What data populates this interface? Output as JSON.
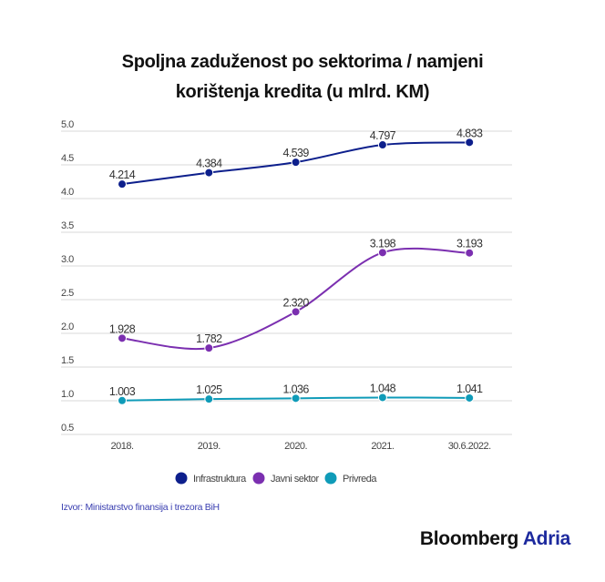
{
  "title_line1": "Spoljna zaduženost po sektorima / namjeni",
  "title_line2": "korištenja kredita (u mlrd. KM)",
  "source": "Izvor: Ministarstvo finansija i trezora BiH",
  "logo": {
    "part1": "Bloomberg",
    "part2": "Adria"
  },
  "chart_data": {
    "type": "line",
    "title": "Spoljna zaduženost po sektorima / namjeni korištenja kredita (u mlrd. KM)",
    "categories": [
      "2018.",
      "2019.",
      "2020.",
      "2021.",
      "30.6.2022."
    ],
    "ylim": [
      0.5,
      5.0
    ],
    "yticks": [
      "0.5",
      "1.0",
      "1.5",
      "2.0",
      "2.5",
      "3.0",
      "3.5",
      "4.0",
      "4.5",
      "5.0"
    ],
    "grid": true,
    "legend_position": "bottom",
    "series": [
      {
        "name": "Infrastruktura",
        "color": "#0d1f8c",
        "values": [
          4.214,
          4.384,
          4.539,
          4.797,
          4.833
        ],
        "labels": [
          "4.214",
          "4.384",
          "4.539",
          "4.797",
          "4.833"
        ]
      },
      {
        "name": "Javni sektor",
        "color": "#7b2fb0",
        "values": [
          1.928,
          1.782,
          2.32,
          3.198,
          3.193
        ],
        "labels": [
          "1.928",
          "1.782",
          "2.320",
          "3.198",
          "3.193"
        ]
      },
      {
        "name": "Privreda",
        "color": "#0f9bb8",
        "values": [
          1.003,
          1.025,
          1.036,
          1.048,
          1.041
        ],
        "labels": [
          "1.003",
          "1.025",
          "1.036",
          "1.048",
          "1.041"
        ]
      }
    ]
  }
}
